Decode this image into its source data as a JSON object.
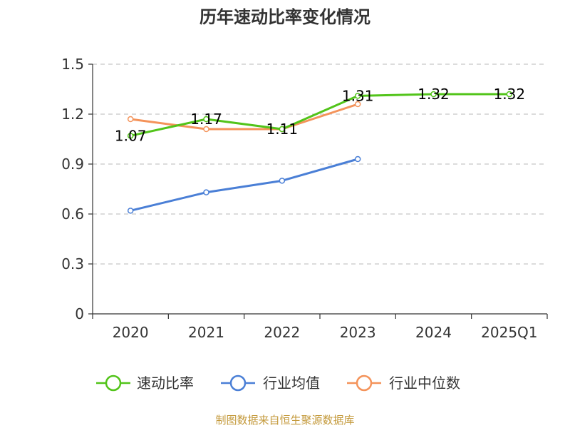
{
  "chart_data": {
    "type": "line",
    "title": "历年速动比率变化情况",
    "categories": [
      "2020",
      "2021",
      "2022",
      "2023",
      "2024",
      "2025Q1"
    ],
    "ylim": [
      0,
      1.5
    ],
    "yticks": [
      "0",
      "0.3",
      "0.6",
      "0.9",
      "1.2",
      "1.5"
    ],
    "grid": true,
    "legend_position": "bottom",
    "series": [
      {
        "name": "速动比率",
        "color": "#52c41a",
        "values": [
          1.07,
          1.17,
          1.11,
          1.31,
          1.32,
          1.32
        ],
        "labels": [
          "1.07",
          "1.17",
          "1.11",
          "1.31",
          "1.32",
          "1.32"
        ]
      },
      {
        "name": "行业均值",
        "color": "#4a7fd6",
        "values": [
          0.62,
          0.73,
          0.8,
          0.93,
          null,
          null
        ]
      },
      {
        "name": "行业中位数",
        "color": "#f4935a",
        "values": [
          1.17,
          1.11,
          1.11,
          1.26,
          null,
          null
        ]
      }
    ],
    "source": "制图数据来自恒生聚源数据库"
  }
}
